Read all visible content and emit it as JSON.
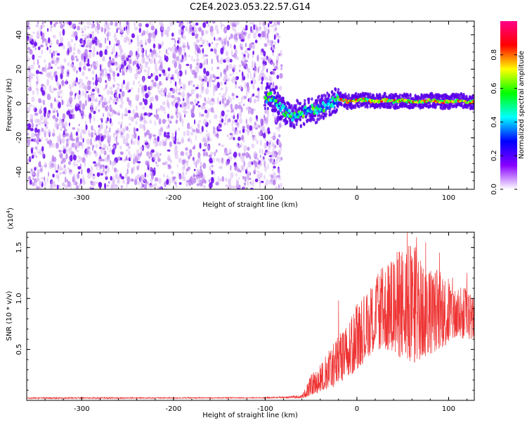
{
  "title": "C2E4.2023.053.22.57.G14",
  "chart_data": [
    {
      "type": "heatmap",
      "xlabel": "Height of straight line (km)",
      "ylabel": "Frequency (Hz)",
      "xlim": [
        -360,
        128
      ],
      "ylim": [
        -50,
        48
      ],
      "x_ticks": [
        -300,
        -200,
        -100,
        0,
        100
      ],
      "x_tick_labels": [
        "-300",
        "-200",
        "-100",
        "0",
        "100"
      ],
      "y_ticks": [
        -40,
        -20,
        0,
        20,
        40
      ],
      "y_tick_labels": [
        "-40",
        "-20",
        "0",
        "20",
        "40"
      ],
      "noise_region_x": [
        -360,
        -82
      ],
      "signal_trace": {
        "x": [
          -100,
          -95,
          -90,
          -85,
          -80,
          -75,
          -70,
          -65,
          -60,
          -55,
          -50,
          -45,
          -40,
          -35,
          -30,
          -25,
          -20,
          -15,
          -10,
          -5,
          0,
          10,
          20,
          30,
          40,
          50,
          60,
          70,
          80,
          90,
          100,
          110,
          120,
          128
        ],
        "y": [
          3,
          4,
          2,
          -2,
          -4,
          -6,
          -8,
          -5,
          -7,
          -4,
          -3,
          -5,
          -2,
          -2,
          0,
          1,
          3,
          2,
          1,
          1,
          2,
          2,
          1,
          2,
          1,
          2,
          1,
          1,
          2,
          1,
          1,
          2,
          1,
          1
        ]
      },
      "colorbar": {
        "label": "Normalized spectral amplitude",
        "range": [
          0,
          1
        ],
        "ticks": [
          0.0,
          0.2,
          0.4,
          0.6,
          0.8
        ],
        "tick_labels": [
          "0.0",
          "0.2",
          "0.4",
          "0.6",
          "0.8"
        ],
        "colormap": [
          "#ffffff",
          "#8800ff",
          "#0000ff",
          "#00ffff",
          "#00ff00",
          "#ffff00",
          "#ff0000",
          "#ff0088"
        ]
      },
      "grid": false
    },
    {
      "type": "line",
      "xlabel": "Height of straight line (km)",
      "ylabel": "SNR (10 * v/v)",
      "multiplier_label": "(x10",
      "multiplier_exp": "4",
      "multiplier_close": ")",
      "xlim": [
        -360,
        128
      ],
      "ylim": [
        0,
        1.65
      ],
      "x_ticks": [
        -300,
        -200,
        -100,
        0,
        100
      ],
      "x_tick_labels": [
        "-300",
        "-200",
        "-100",
        "0",
        "100"
      ],
      "y_ticks": [
        0.5,
        1.0,
        1.5
      ],
      "y_tick_labels": [
        "0.5",
        "1.0",
        "1.5"
      ],
      "color": "#ee3333",
      "envelope": {
        "x": [
          -360,
          -100,
          -60,
          -50,
          -40,
          -30,
          -20,
          -10,
          0,
          10,
          20,
          30,
          40,
          50,
          60,
          70,
          80,
          90,
          100,
          110,
          120,
          128
        ],
        "low": [
          0.015,
          0.02,
          0.02,
          0.05,
          0.08,
          0.12,
          0.15,
          0.2,
          0.3,
          0.4,
          0.5,
          0.5,
          0.45,
          0.4,
          0.35,
          0.4,
          0.45,
          0.5,
          0.55,
          0.6,
          0.6,
          0.6
        ],
        "high": [
          0.03,
          0.03,
          0.05,
          0.25,
          0.35,
          0.5,
          0.65,
          0.75,
          0.95,
          1.05,
          1.2,
          1.35,
          1.45,
          1.5,
          1.55,
          1.45,
          1.35,
          1.3,
          1.25,
          1.15,
          1.1,
          1.05
        ]
      },
      "peaks": [
        {
          "x": -20,
          "y": 0.98
        },
        {
          "x": 15,
          "y": 1.1
        },
        {
          "x": 38,
          "y": 1.35
        },
        {
          "x": 55,
          "y": 1.65
        },
        {
          "x": 65,
          "y": 1.6
        },
        {
          "x": 75,
          "y": 1.55
        },
        {
          "x": 90,
          "y": 1.45
        },
        {
          "x": 120,
          "y": 1.25
        }
      ],
      "grid": false
    }
  ]
}
